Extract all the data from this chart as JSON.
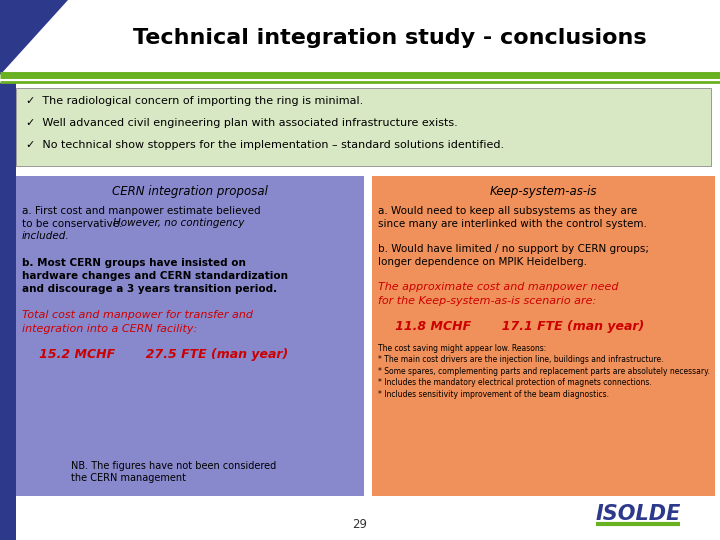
{
  "title": "Technical integration study - conclusions",
  "title_fontsize": 16,
  "title_color": "#000000",
  "bg_color": "#ffffff",
  "header_triangle_color": "#2d3a8c",
  "green_line_color": "#6ab023",
  "blue_bar_color": "#2d3a8c",
  "bullet_box_color": "#d9e8c4",
  "bullet_points": [
    "✓  The radiological concern of importing the ring is minimal.",
    "✓  Well advanced civil engineering plan with associated infrastructure exists.",
    "✓  No technical show stoppers for the implementation – standard solutions identified."
  ],
  "left_box_color": "#8888cc",
  "right_box_color": "#f0905a",
  "left_title": "CERN integration proposal",
  "right_title": "Keep-system-as-is",
  "left_text_a1": "a. First cost and manpower estimate believed",
  "left_text_a2": "to be conservative. ",
  "left_text_a2i": "However, no contingency",
  "left_text_a3i": "included.",
  "left_text_b": "b. Most CERN groups have insisted on\nhardware changes and CERN standardization\nand discourage a 3 years transition period.",
  "left_italic": "Total cost and manpower for transfer and\nintegration into a CERN facility:",
  "left_bold": "   15.2 MCHF       27.5 FTE (man year)",
  "right_text_a": "a. Would need to keep all subsystems as they are\nsince many are interlinked with the control system.",
  "right_text_b": "b. Would have limited / no support by CERN groups;\nlonger dependence on MPIK Heidelberg.",
  "right_italic": "The approximate cost and manpower need\nfor the Keep-system-as-is scenario are:",
  "right_bold": "   11.8 MCHF       17.1 FTE (man year)",
  "right_small": "The cost saving might appear low. Reasons:\n* The main cost drivers are the injection line, buildings and infrastructure.\n* Some spares, complementing parts and replacement parts are absolutely necessary.\n* Includes the mandatory electrical protection of magnets connections.\n* Includes sensitivity improvement of the beam diagnostics.",
  "nb_text": "NB. The figures have not been considered\nthe CERN management",
  "page_number": "29",
  "red_color": "#cc0000",
  "isolde_color": "#2d3a8c"
}
